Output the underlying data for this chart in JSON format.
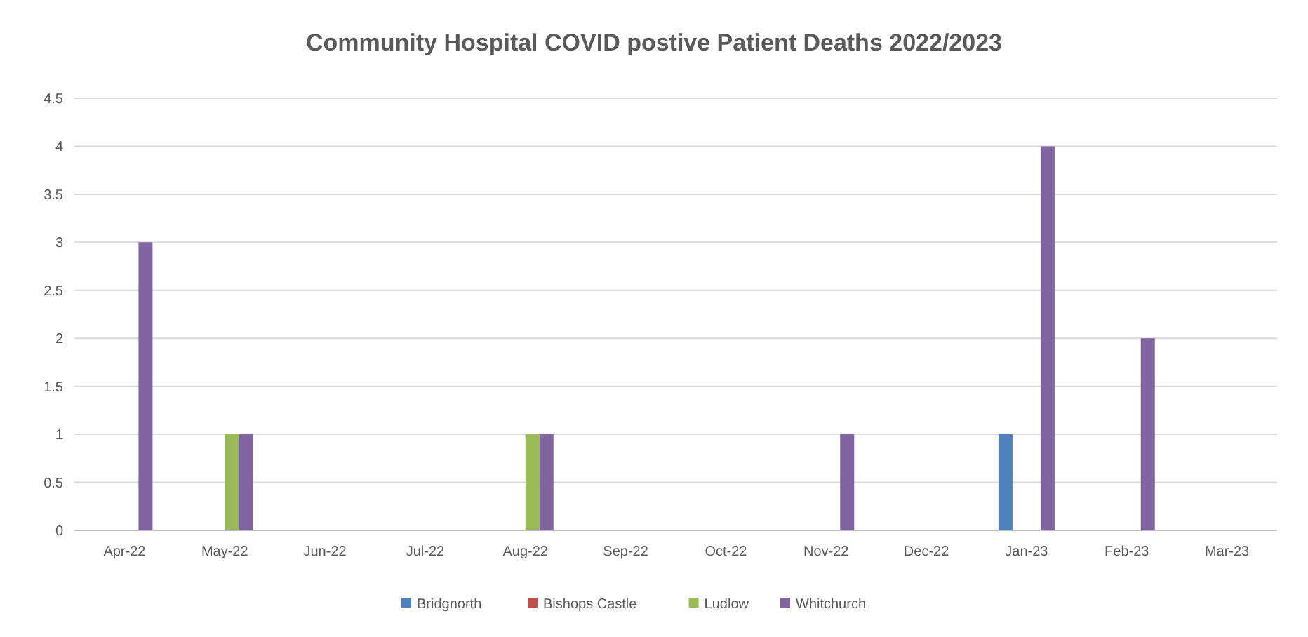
{
  "chart_data": {
    "type": "bar",
    "title": "Community Hospital COVID postive Patient Deaths 2022/2023",
    "categories": [
      "Apr-22",
      "May-22",
      "Jun-22",
      "Jul-22",
      "Aug-22",
      "Sep-22",
      "Oct-22",
      "Nov-22",
      "Dec-22",
      "Jan-23",
      "Feb-23",
      "Mar-23"
    ],
    "series": [
      {
        "name": "Bridgnorth",
        "color": "#4f81bd",
        "values": [
          0,
          0,
          0,
          0,
          0,
          0,
          0,
          0,
          0,
          1,
          0,
          0
        ]
      },
      {
        "name": "Bishops Castle",
        "color": "#c0504d",
        "values": [
          0,
          0,
          0,
          0,
          0,
          0,
          0,
          0,
          0,
          0,
          0,
          0
        ]
      },
      {
        "name": "Ludlow",
        "color": "#9bbb59",
        "values": [
          0,
          1,
          0,
          0,
          1,
          0,
          0,
          0,
          0,
          0,
          0,
          0
        ]
      },
      {
        "name": "Whitchurch",
        "color": "#8064a2",
        "values": [
          3,
          1,
          0,
          0,
          1,
          0,
          0,
          1,
          0,
          4,
          2,
          0
        ]
      }
    ],
    "ylim": [
      0,
      4.5
    ],
    "yticks": [
      0,
      0.5,
      1,
      1.5,
      2,
      2.5,
      3,
      3.5,
      4,
      4.5
    ],
    "grid": "y",
    "legend": "bottom"
  }
}
